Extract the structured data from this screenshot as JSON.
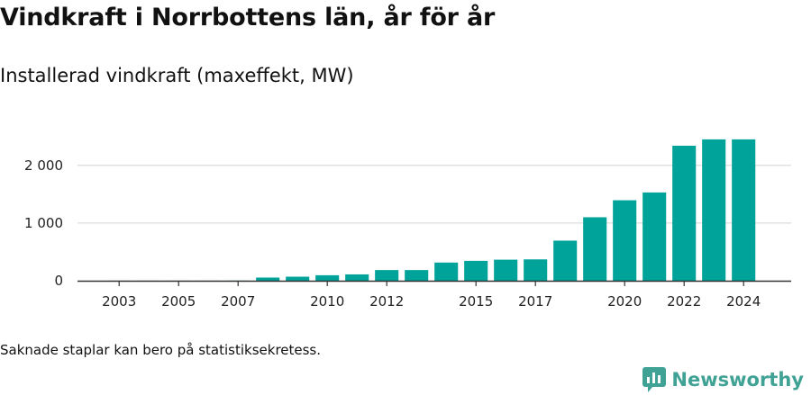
{
  "header": {
    "title": "Vindkraft i Norrbottens län, år för år",
    "subtitle": "Installerad vindkraft (maxeffekt, MW)"
  },
  "footer": {
    "note": "Saknade staplar kan bero på statistiksekretess.",
    "brand": "Newsworthy"
  },
  "colors": {
    "bar": "#00a399",
    "brand": "#3fa294",
    "grid": "#dcdcdc",
    "axis": "#333333"
  },
  "icons": {
    "brand": "newsworthy-logo-icon"
  },
  "chart_data": {
    "type": "bar",
    "title": "Vindkraft i Norrbottens län, år för år",
    "subtitle": "Installerad vindkraft (maxeffekt, MW)",
    "xlabel": "",
    "ylabel": "",
    "categories": [
      "2003",
      "2004",
      "2005",
      "2006",
      "2007",
      "2008",
      "2009",
      "2010",
      "2011",
      "2012",
      "2013",
      "2014",
      "2015",
      "2016",
      "2017",
      "2018",
      "2019",
      "2020",
      "2021",
      "2022",
      "2023",
      "2024"
    ],
    "values": [
      1,
      1,
      1,
      1,
      2,
      55,
      70,
      95,
      110,
      185,
      185,
      315,
      345,
      365,
      370,
      695,
      1100,
      1395,
      1530,
      2340,
      2450,
      2450
    ],
    "xticks": [
      "2003",
      "2005",
      "2007",
      "2010",
      "2012",
      "2015",
      "2017",
      "2020",
      "2022",
      "2024"
    ],
    "yticks": [
      0,
      1000,
      2000
    ],
    "ytick_labels": [
      "0",
      "1 000",
      "2 000"
    ],
    "ylim": [
      0,
      2620
    ],
    "grid": true,
    "legend": "none"
  }
}
